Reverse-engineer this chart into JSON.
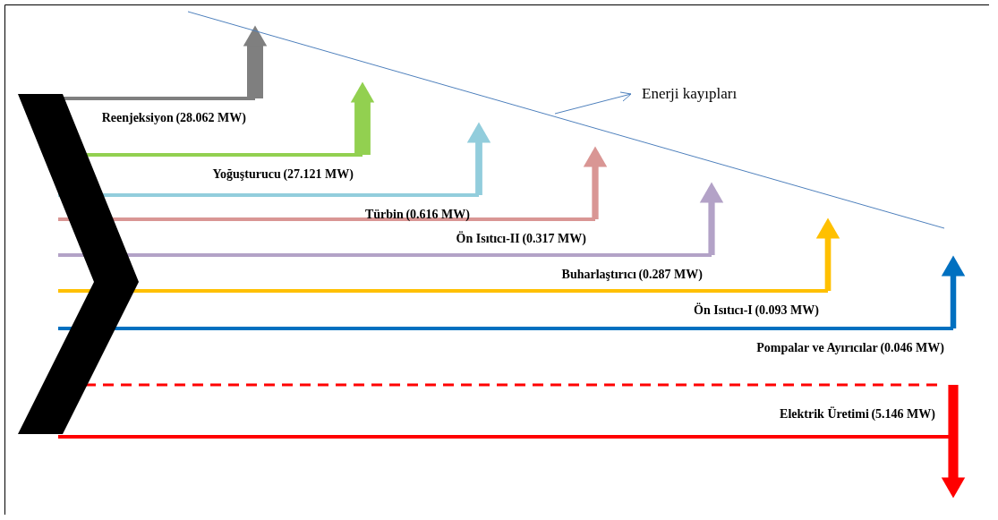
{
  "chart_data": {
    "type": "other",
    "categories": [
      "Reenjeksiyon",
      "Yoğuşturucu",
      "Türbin",
      "Ön Isıtıcı-II",
      "Buharlaştırıcı",
      "Ön Isıtıcı-I",
      "Pompalar ve Ayırıcılar",
      "Elektrik Üretimi"
    ],
    "values": [
      28.062,
      27.121,
      0.616,
      0.317,
      0.287,
      0.093,
      0.046,
      5.146
    ],
    "value_labels": [
      "(28.062 MW)",
      "(27.121 MW)",
      "(0.616 MW)",
      "(0.317 MW)",
      "(0.287 MW)",
      "(0.093 MW)",
      "(0.046 MW)",
      "(5.146 MW)"
    ],
    "colors": [
      "#7f7f7f",
      "#92d050",
      "#92cddc",
      "#d99694",
      "#b3a2c7",
      "#ffc000",
      "#0070c0",
      "#ff0000"
    ],
    "annotations": [
      "Enerji kayıpları"
    ]
  }
}
